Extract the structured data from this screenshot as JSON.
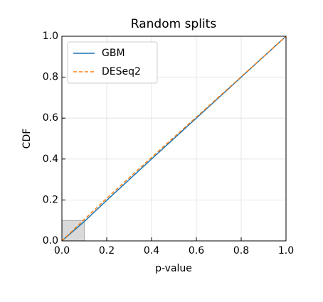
{
  "chart_data": {
    "type": "line",
    "title": "Random splits",
    "x_label": "p-value",
    "y_label": "CDF",
    "x": [
      0,
      0.1,
      0.2,
      0.4,
      0.6,
      0.8,
      1.0
    ],
    "series": [
      {
        "name": "GBM",
        "color": "#1f77b4",
        "linestyle": "solid",
        "values": [
          0,
          0.095,
          0.198,
          0.4,
          0.6,
          0.8,
          1.0
        ]
      },
      {
        "name": "DESeq2",
        "color": "#ff7f0e",
        "linestyle": "dashed",
        "values": [
          0,
          0.105,
          0.208,
          0.408,
          0.605,
          0.802,
          1.0
        ]
      }
    ],
    "shaded_region": {
      "x": [
        0,
        0.1
      ],
      "y": [
        0,
        0.1
      ],
      "color": "#d9d9d9"
    },
    "xlim": [
      0,
      1
    ],
    "ylim": [
      0,
      1
    ],
    "xticks": [
      {
        "value": 0,
        "label": "0.0"
      },
      0.2,
      0.4,
      0.6,
      0.8,
      {
        "value": 1,
        "label": "1.0"
      }
    ],
    "yticks": [
      {
        "value": 0,
        "label": "0.0"
      },
      0.2,
      0.4,
      0.6,
      0.8,
      {
        "value": 1,
        "label": "1.0"
      }
    ],
    "grid": true,
    "legend": "upper left"
  }
}
